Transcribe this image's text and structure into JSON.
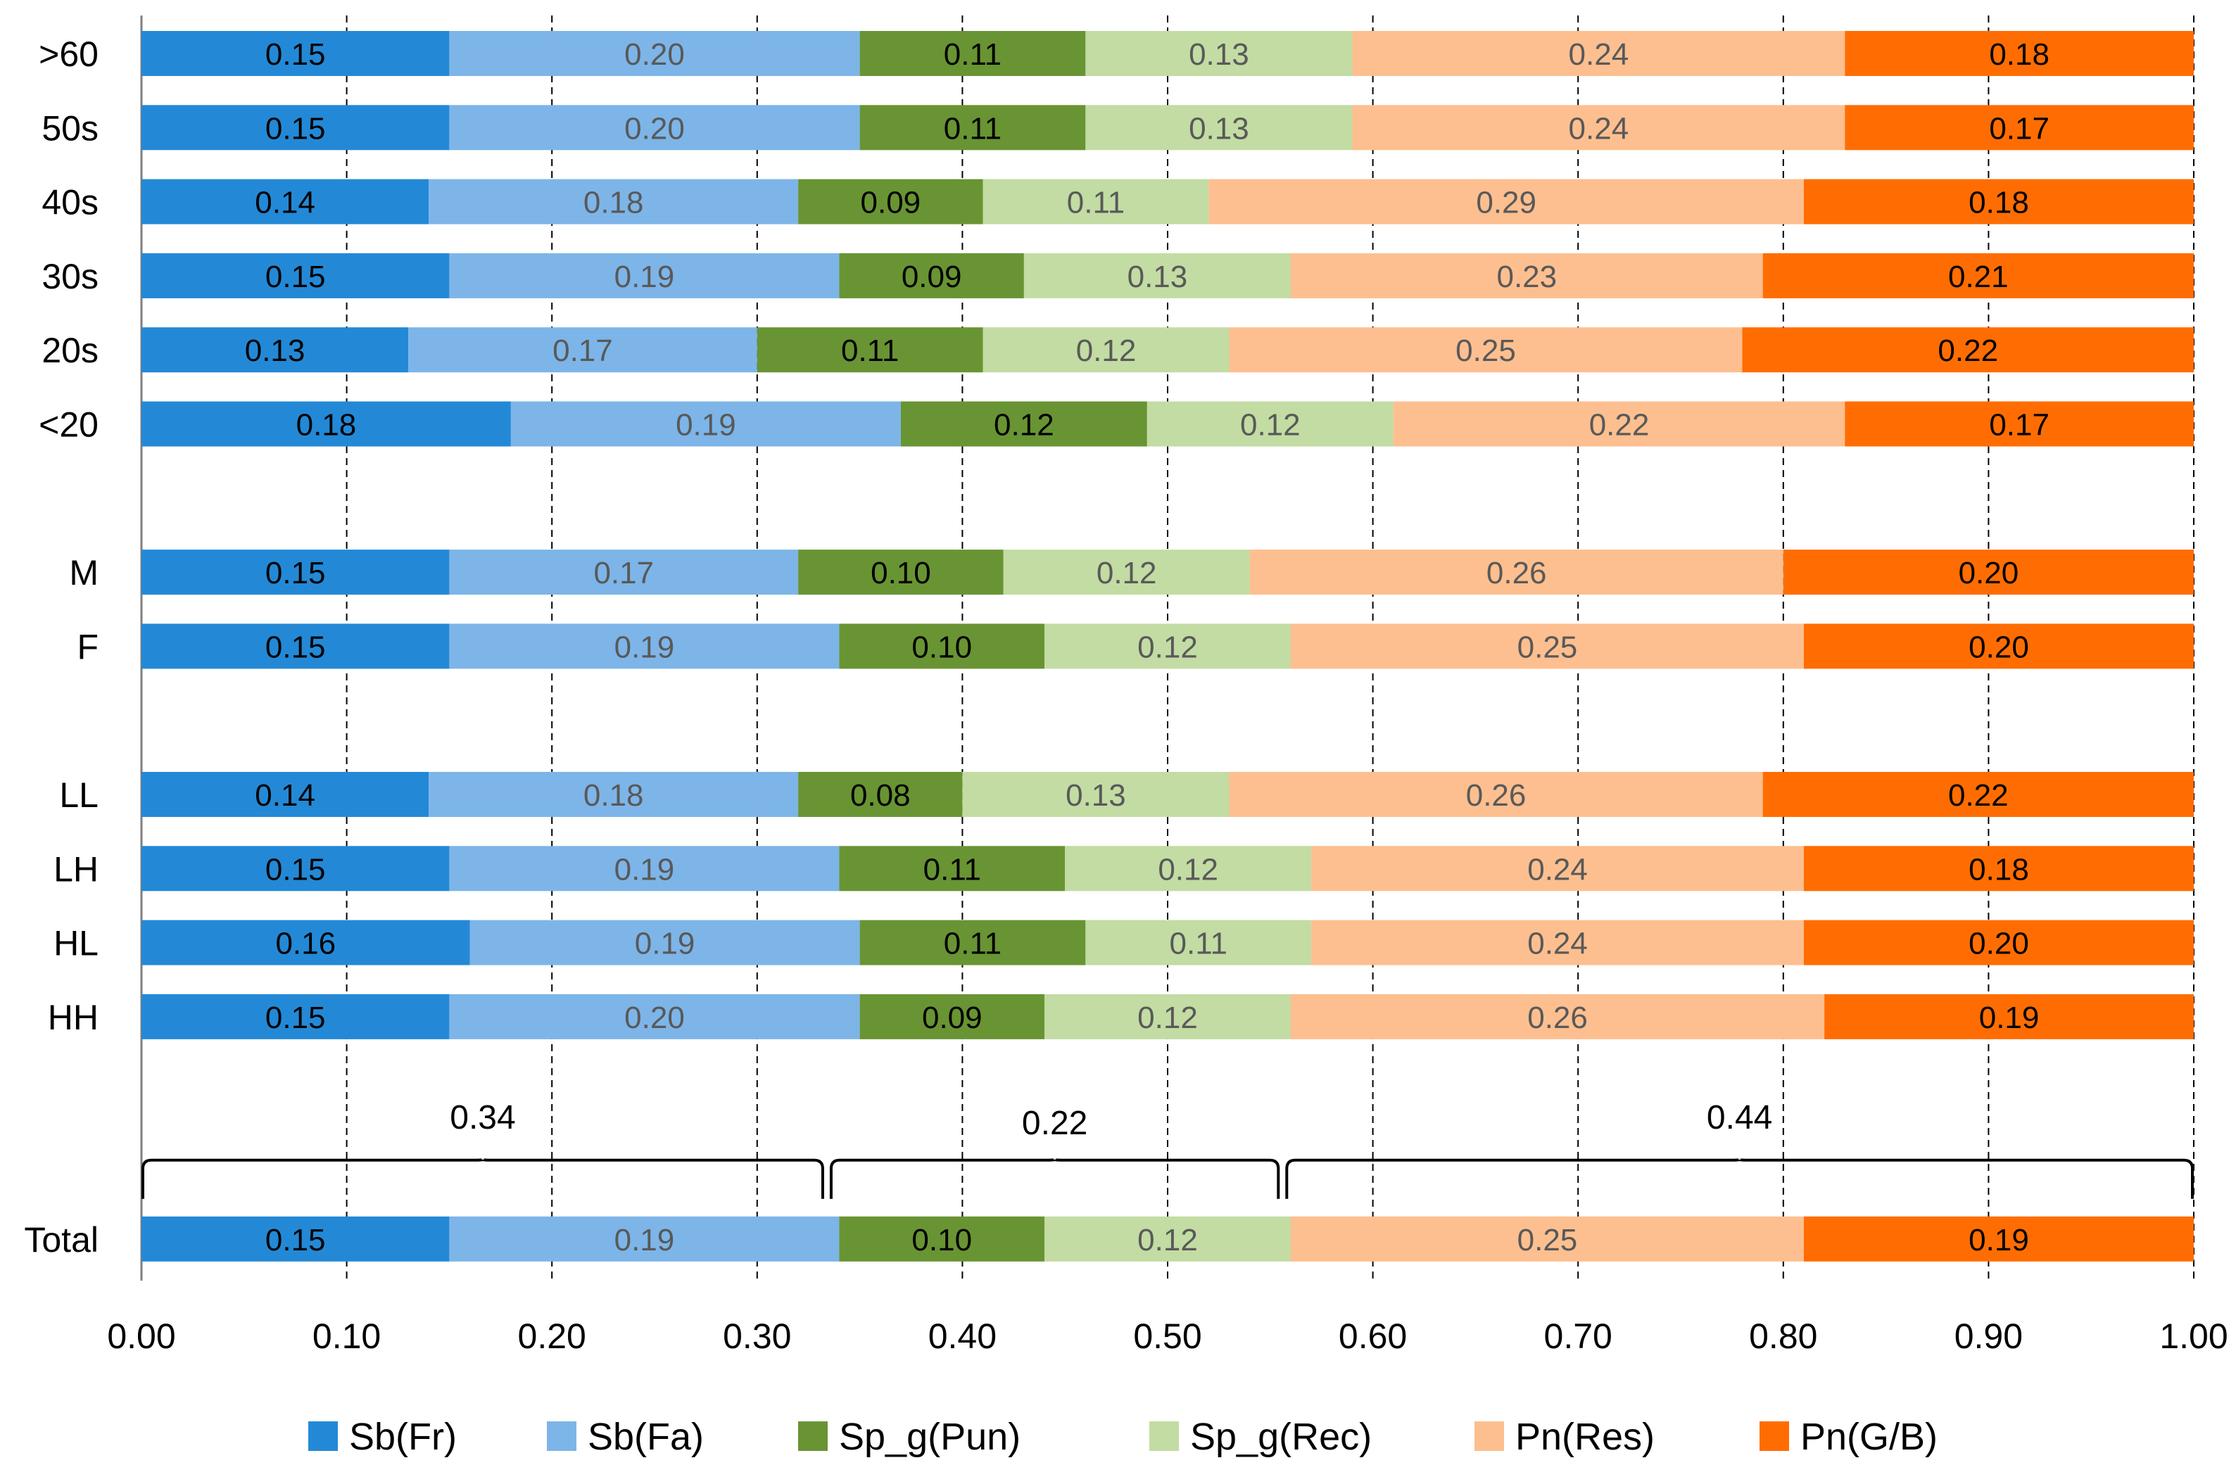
{
  "chart_data": {
    "type": "bar",
    "orientation": "horizontal",
    "stacked": true,
    "title": "",
    "xlabel": "",
    "ylabel": "",
    "xlim": [
      0.0,
      1.0
    ],
    "x_ticks": [
      "0.00",
      "0.10",
      "0.20",
      "0.30",
      "0.40",
      "0.50",
      "0.60",
      "0.70",
      "0.80",
      "0.90",
      "1.00"
    ],
    "grid": "vertical dashed",
    "legend_position": "bottom",
    "categories": [
      ">60",
      "50s",
      "40s",
      "30s",
      "20s",
      "<20",
      "M",
      "F",
      "LL",
      "LH",
      "HL",
      "HH",
      "Total"
    ],
    "group_breaks_after": [
      "<20",
      "F",
      "HH"
    ],
    "series": [
      {
        "name": "Sb(Fr)",
        "color": "#2389d6",
        "label_color": "#000000",
        "values": [
          0.15,
          0.15,
          0.14,
          0.15,
          0.13,
          0.18,
          0.15,
          0.15,
          0.14,
          0.15,
          0.16,
          0.15,
          0.15
        ]
      },
      {
        "name": "Sb(Fa)",
        "color": "#7db5e8",
        "label_color": "#595959",
        "values": [
          0.2,
          0.2,
          0.18,
          0.19,
          0.17,
          0.19,
          0.17,
          0.19,
          0.18,
          0.19,
          0.19,
          0.2,
          0.19
        ]
      },
      {
        "name": "Sp_g(Pun)",
        "color": "#699433",
        "label_color": "#000000",
        "values": [
          0.11,
          0.11,
          0.09,
          0.09,
          0.11,
          0.12,
          0.1,
          0.1,
          0.08,
          0.11,
          0.11,
          0.09,
          0.1
        ]
      },
      {
        "name": "Sp_g(Rec)",
        "color": "#c2dca3",
        "label_color": "#595959",
        "values": [
          0.13,
          0.13,
          0.11,
          0.13,
          0.12,
          0.12,
          0.12,
          0.12,
          0.13,
          0.12,
          0.11,
          0.12,
          0.12
        ]
      },
      {
        "name": "Pn(Res)",
        "color": "#fdbf8f",
        "label_color": "#595959",
        "values": [
          0.24,
          0.24,
          0.29,
          0.23,
          0.25,
          0.22,
          0.26,
          0.25,
          0.26,
          0.24,
          0.24,
          0.26,
          0.25
        ]
      },
      {
        "name": "Pn(G/B)",
        "color": "#ff6d02",
        "label_color": "#000000",
        "values": [
          0.18,
          0.17,
          0.18,
          0.21,
          0.22,
          0.17,
          0.2,
          0.2,
          0.22,
          0.18,
          0.2,
          0.19,
          0.19
        ]
      }
    ],
    "annotations": [
      {
        "type": "brace",
        "label": "0.34",
        "from": 0.0,
        "to": 0.334,
        "over_category": "Total"
      },
      {
        "type": "brace",
        "label": "0.22",
        "from": 0.334,
        "to": 0.556,
        "over_category": "Total"
      },
      {
        "type": "brace",
        "label": "0.44",
        "from": 0.556,
        "to": 1.0,
        "over_category": "Total"
      }
    ]
  }
}
